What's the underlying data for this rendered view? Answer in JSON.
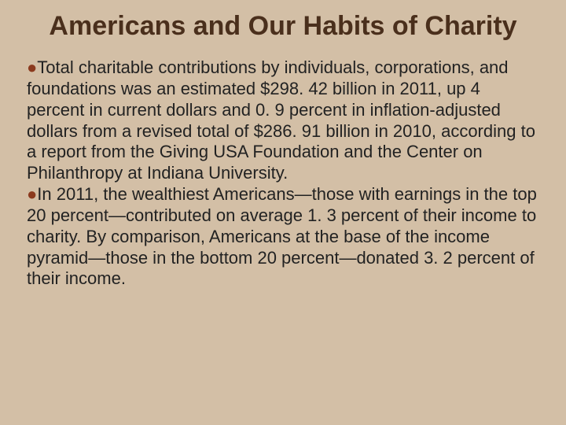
{
  "slide": {
    "background_color": "#d3bfa6",
    "title": {
      "text": "Americans and Our Habits of Charity",
      "color": "#4a2f1c",
      "fontsize": 34
    },
    "bullet_color": "#8b3a1e",
    "body_fontsize": 22,
    "body_color": "#222222",
    "items": [
      "Total charitable contributions by individuals, corporations, and foundations was an estimated $298. 42 billion in 2011, up 4 percent in current dollars and 0. 9 percent in inflation-adjusted dollars from a revised total of $286. 91 billion in 2010, according to a report from the Giving USA Foundation and the Center on Philanthropy at Indiana University.",
      "In 2011, the wealthiest Americans—those with earnings in the top 20 percent—contributed on average 1. 3 percent of their income to charity. By comparison, Americans at the base of the income pyramid—those in the bottom 20 percent—donated 3. 2 percent of their income."
    ]
  }
}
